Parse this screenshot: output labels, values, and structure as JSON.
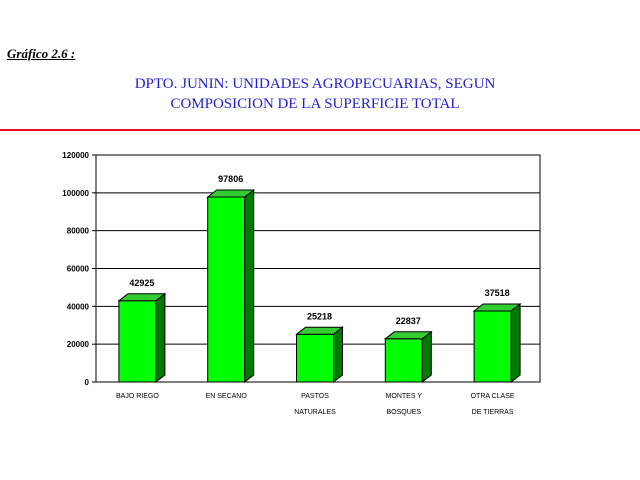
{
  "figure_label": "Gráfico 2.6 :",
  "title_lines": [
    "DPTO. JUNIN: UNIDADES AGROPECUARIAS, SEGUN",
    "COMPOSICION DE LA SUPERFICIE TOTAL"
  ],
  "colors": {
    "bar_front": "#00ff00",
    "bar_side": "#007a00",
    "bar_top": "#33cc33",
    "rule": "#e0141e",
    "title": "#1f1fd0"
  },
  "chart_data": {
    "type": "bar",
    "categories": [
      [
        "BAJO RIEGO"
      ],
      [
        "EN SECANO"
      ],
      [
        "PASTOS",
        "NATURALES"
      ],
      [
        "MONTES Y",
        "BOSQUES"
      ],
      [
        "OTRA CLASE",
        "DE TIERRAS"
      ]
    ],
    "values": [
      42925,
      97806,
      25218,
      22837,
      37518
    ],
    "data_labels": [
      "42925",
      "97806",
      "25218",
      "22837",
      "37518"
    ],
    "yticks": [
      0,
      20000,
      40000,
      60000,
      80000,
      100000,
      120000
    ],
    "ylim": [
      0,
      120000
    ],
    "grid": true,
    "style": "3d",
    "legend": "none"
  }
}
